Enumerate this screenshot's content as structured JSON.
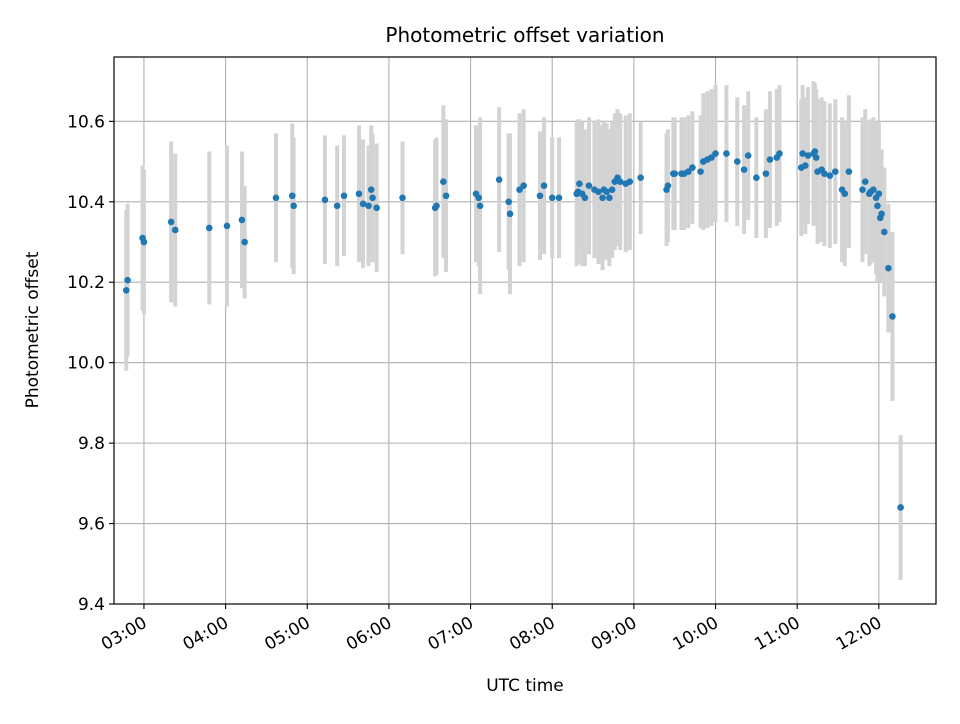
{
  "chart_data": {
    "type": "scatter",
    "title": "Photometric offset variation",
    "xlabel": "UTC time",
    "ylabel": "Photometric offset",
    "ylim": [
      9.4,
      10.76
    ],
    "xlim": [
      "02:38",
      "12:42"
    ],
    "grid": true,
    "x_ticks": [
      "03:00",
      "04:00",
      "05:00",
      "06:00",
      "07:00",
      "08:00",
      "09:00",
      "10:00",
      "11:00",
      "12:00"
    ],
    "y_ticks": [
      9.4,
      9.6,
      9.8,
      10.0,
      10.2,
      10.4,
      10.6
    ],
    "colors": {
      "marker": "#1f77b4",
      "errorbar": "#d3d3d3",
      "grid": "#b0b0b0"
    },
    "series": [
      {
        "points": [
          [
            "02:47",
            10.18,
            0.2
          ],
          [
            "02:48",
            10.205,
            0.19
          ],
          [
            "02:59",
            10.31,
            0.18
          ],
          [
            "03:00",
            10.3,
            0.18
          ],
          [
            "03:20",
            10.35,
            0.2
          ],
          [
            "03:23",
            10.33,
            0.19
          ],
          [
            "03:48",
            10.335,
            0.19
          ],
          [
            "04:01",
            10.34,
            0.2
          ],
          [
            "04:12",
            10.355,
            0.17
          ],
          [
            "04:14",
            10.3,
            0.14
          ],
          [
            "04:37",
            10.41,
            0.16
          ],
          [
            "04:49",
            10.415,
            0.18
          ],
          [
            "04:50",
            10.39,
            0.17
          ],
          [
            "05:13",
            10.405,
            0.16
          ],
          [
            "05:22",
            10.39,
            0.15
          ],
          [
            "05:27",
            10.415,
            0.15
          ],
          [
            "05:38",
            10.42,
            0.17
          ],
          [
            "05:41",
            10.395,
            0.16
          ],
          [
            "05:45",
            10.39,
            0.15
          ],
          [
            "05:47",
            10.43,
            0.16
          ],
          [
            "05:48",
            10.41,
            0.16
          ],
          [
            "05:51",
            10.385,
            0.16
          ],
          [
            "06:10",
            10.41,
            0.14
          ],
          [
            "06:34",
            10.385,
            0.17
          ],
          [
            "06:35",
            10.39,
            0.17
          ],
          [
            "06:40",
            10.45,
            0.19
          ],
          [
            "06:42",
            10.415,
            0.19
          ],
          [
            "07:04",
            10.42,
            0.17
          ],
          [
            "07:06",
            10.41,
            0.17
          ],
          [
            "07:07",
            10.39,
            0.22
          ],
          [
            "07:21",
            10.455,
            0.18
          ],
          [
            "07:28",
            10.4,
            0.17
          ],
          [
            "07:29",
            10.37,
            0.2
          ],
          [
            "07:36",
            10.43,
            0.19
          ],
          [
            "07:39",
            10.44,
            0.19
          ],
          [
            "07:51",
            10.415,
            0.16
          ],
          [
            "07:54",
            10.44,
            0.17
          ],
          [
            "08:00",
            10.41,
            0.15
          ],
          [
            "08:05",
            10.41,
            0.15
          ],
          [
            "08:18",
            10.42,
            0.18
          ],
          [
            "08:19",
            10.425,
            0.18
          ],
          [
            "08:20",
            10.445,
            0.16
          ],
          [
            "08:22",
            10.42,
            0.18
          ],
          [
            "08:24",
            10.41,
            0.17
          ],
          [
            "08:27",
            10.44,
            0.17
          ],
          [
            "08:31",
            10.43,
            0.17
          ],
          [
            "08:34",
            10.425,
            0.18
          ],
          [
            "08:37",
            10.41,
            0.18
          ],
          [
            "08:38",
            10.43,
            0.17
          ],
          [
            "08:40",
            10.425,
            0.17
          ],
          [
            "08:42",
            10.41,
            0.17
          ],
          [
            "08:44",
            10.43,
            0.17
          ],
          [
            "08:46",
            10.45,
            0.17
          ],
          [
            "08:48",
            10.46,
            0.17
          ],
          [
            "08:50",
            10.45,
            0.17
          ],
          [
            "08:54",
            10.445,
            0.17
          ],
          [
            "08:57",
            10.45,
            0.17
          ],
          [
            "09:05",
            10.46,
            0.14
          ],
          [
            "09:24",
            10.43,
            0.14
          ],
          [
            "09:25",
            10.44,
            0.14
          ],
          [
            "09:29",
            10.47,
            0.14
          ],
          [
            "09:30",
            10.47,
            0.14
          ],
          [
            "09:35",
            10.47,
            0.14
          ],
          [
            "09:37",
            10.47,
            0.14
          ],
          [
            "09:40",
            10.475,
            0.14
          ],
          [
            "09:43",
            10.485,
            0.14
          ],
          [
            "09:49",
            10.475,
            0.14
          ],
          [
            "09:51",
            10.5,
            0.17
          ],
          [
            "09:54",
            10.505,
            0.17
          ],
          [
            "09:57",
            10.51,
            0.17
          ],
          [
            "10:00",
            10.52,
            0.17
          ],
          [
            "10:08",
            10.52,
            0.17
          ],
          [
            "10:16",
            10.5,
            0.16
          ],
          [
            "10:21",
            10.48,
            0.16
          ],
          [
            "10:24",
            10.515,
            0.16
          ],
          [
            "10:30",
            10.46,
            0.15
          ],
          [
            "10:37",
            10.47,
            0.16
          ],
          [
            "10:40",
            10.505,
            0.17
          ],
          [
            "10:45",
            10.51,
            0.17
          ],
          [
            "10:47",
            10.52,
            0.17
          ],
          [
            "11:03",
            10.485,
            0.17
          ],
          [
            "11:04",
            10.52,
            0.17
          ],
          [
            "11:06",
            10.49,
            0.17
          ],
          [
            "11:08",
            10.515,
            0.17
          ],
          [
            "11:12",
            10.52,
            0.18
          ],
          [
            "11:13",
            10.525,
            0.17
          ],
          [
            "11:14",
            10.51,
            0.17
          ],
          [
            "11:15",
            10.475,
            0.18
          ],
          [
            "11:18",
            10.48,
            0.18
          ],
          [
            "11:20",
            10.47,
            0.18
          ],
          [
            "11:24",
            10.465,
            0.18
          ],
          [
            "11:28",
            10.475,
            0.18
          ],
          [
            "11:33",
            10.43,
            0.18
          ],
          [
            "11:35",
            10.42,
            0.18
          ],
          [
            "11:38",
            10.475,
            0.19
          ],
          [
            "11:48",
            10.43,
            0.18
          ],
          [
            "11:50",
            10.45,
            0.18
          ],
          [
            "11:53",
            10.42,
            0.18
          ],
          [
            "11:54",
            10.425,
            0.18
          ],
          [
            "11:56",
            10.43,
            0.18
          ],
          [
            "11:58",
            10.41,
            0.19
          ],
          [
            "11:59",
            10.39,
            0.19
          ],
          [
            "12:00",
            10.42,
            0.18
          ],
          [
            "12:01",
            10.36,
            0.16
          ],
          [
            "12:02",
            10.37,
            0.16
          ],
          [
            "12:04",
            10.325,
            0.16
          ],
          [
            "12:07",
            10.235,
            0.16
          ],
          [
            "12:10",
            10.115,
            0.21
          ],
          [
            "12:16",
            9.64,
            0.18
          ]
        ]
      }
    ]
  }
}
